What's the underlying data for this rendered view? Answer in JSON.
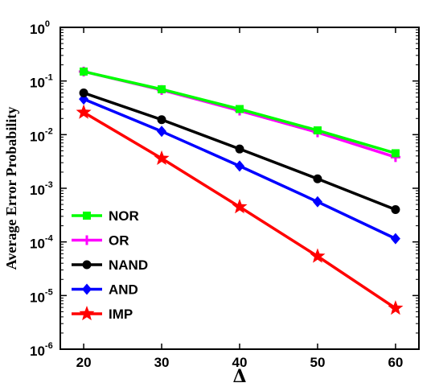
{
  "chart_data": {
    "type": "line",
    "title": "",
    "xlabel": "Δ",
    "ylabel": "Average Error Probability",
    "x": [
      20,
      30,
      40,
      50,
      60
    ],
    "xlim": [
      17,
      63
    ],
    "ylim": [
      1e-06,
      1
    ],
    "yscale": "log",
    "x_ticks": [
      20,
      30,
      40,
      50,
      60
    ],
    "y_ticks": [
      {
        "base": "10",
        "exp": "-6",
        "value": 1e-06
      },
      {
        "base": "10",
        "exp": "-5",
        "value": 1e-05
      },
      {
        "base": "10",
        "exp": "-4",
        "value": 0.0001
      },
      {
        "base": "10",
        "exp": "-3",
        "value": 0.001
      },
      {
        "base": "10",
        "exp": "-2",
        "value": 0.01
      },
      {
        "base": "10",
        "exp": "-1",
        "value": 0.1
      },
      {
        "base": "10",
        "exp": "0",
        "value": 1
      }
    ],
    "grid": false,
    "legend_position": "bottom-left",
    "series": [
      {
        "name": "NOR",
        "color": "#00ff00",
        "marker": "square",
        "values": [
          0.15,
          0.07,
          0.03,
          0.012,
          0.0045
        ]
      },
      {
        "name": "OR",
        "color": "#ff00ff",
        "marker": "plus",
        "values": [
          0.15,
          0.068,
          0.028,
          0.011,
          0.0038
        ]
      },
      {
        "name": "NAND",
        "color": "#000000",
        "marker": "circle",
        "values": [
          0.06,
          0.019,
          0.0054,
          0.0015,
          0.0004
        ]
      },
      {
        "name": "AND",
        "color": "#0000ff",
        "marker": "diamond",
        "values": [
          0.046,
          0.0115,
          0.0026,
          0.00056,
          0.000115
        ]
      },
      {
        "name": "IMP",
        "color": "#ff0000",
        "marker": "star",
        "values": [
          0.026,
          0.0036,
          0.00045,
          5.4e-05,
          5.8e-06
        ]
      }
    ]
  }
}
